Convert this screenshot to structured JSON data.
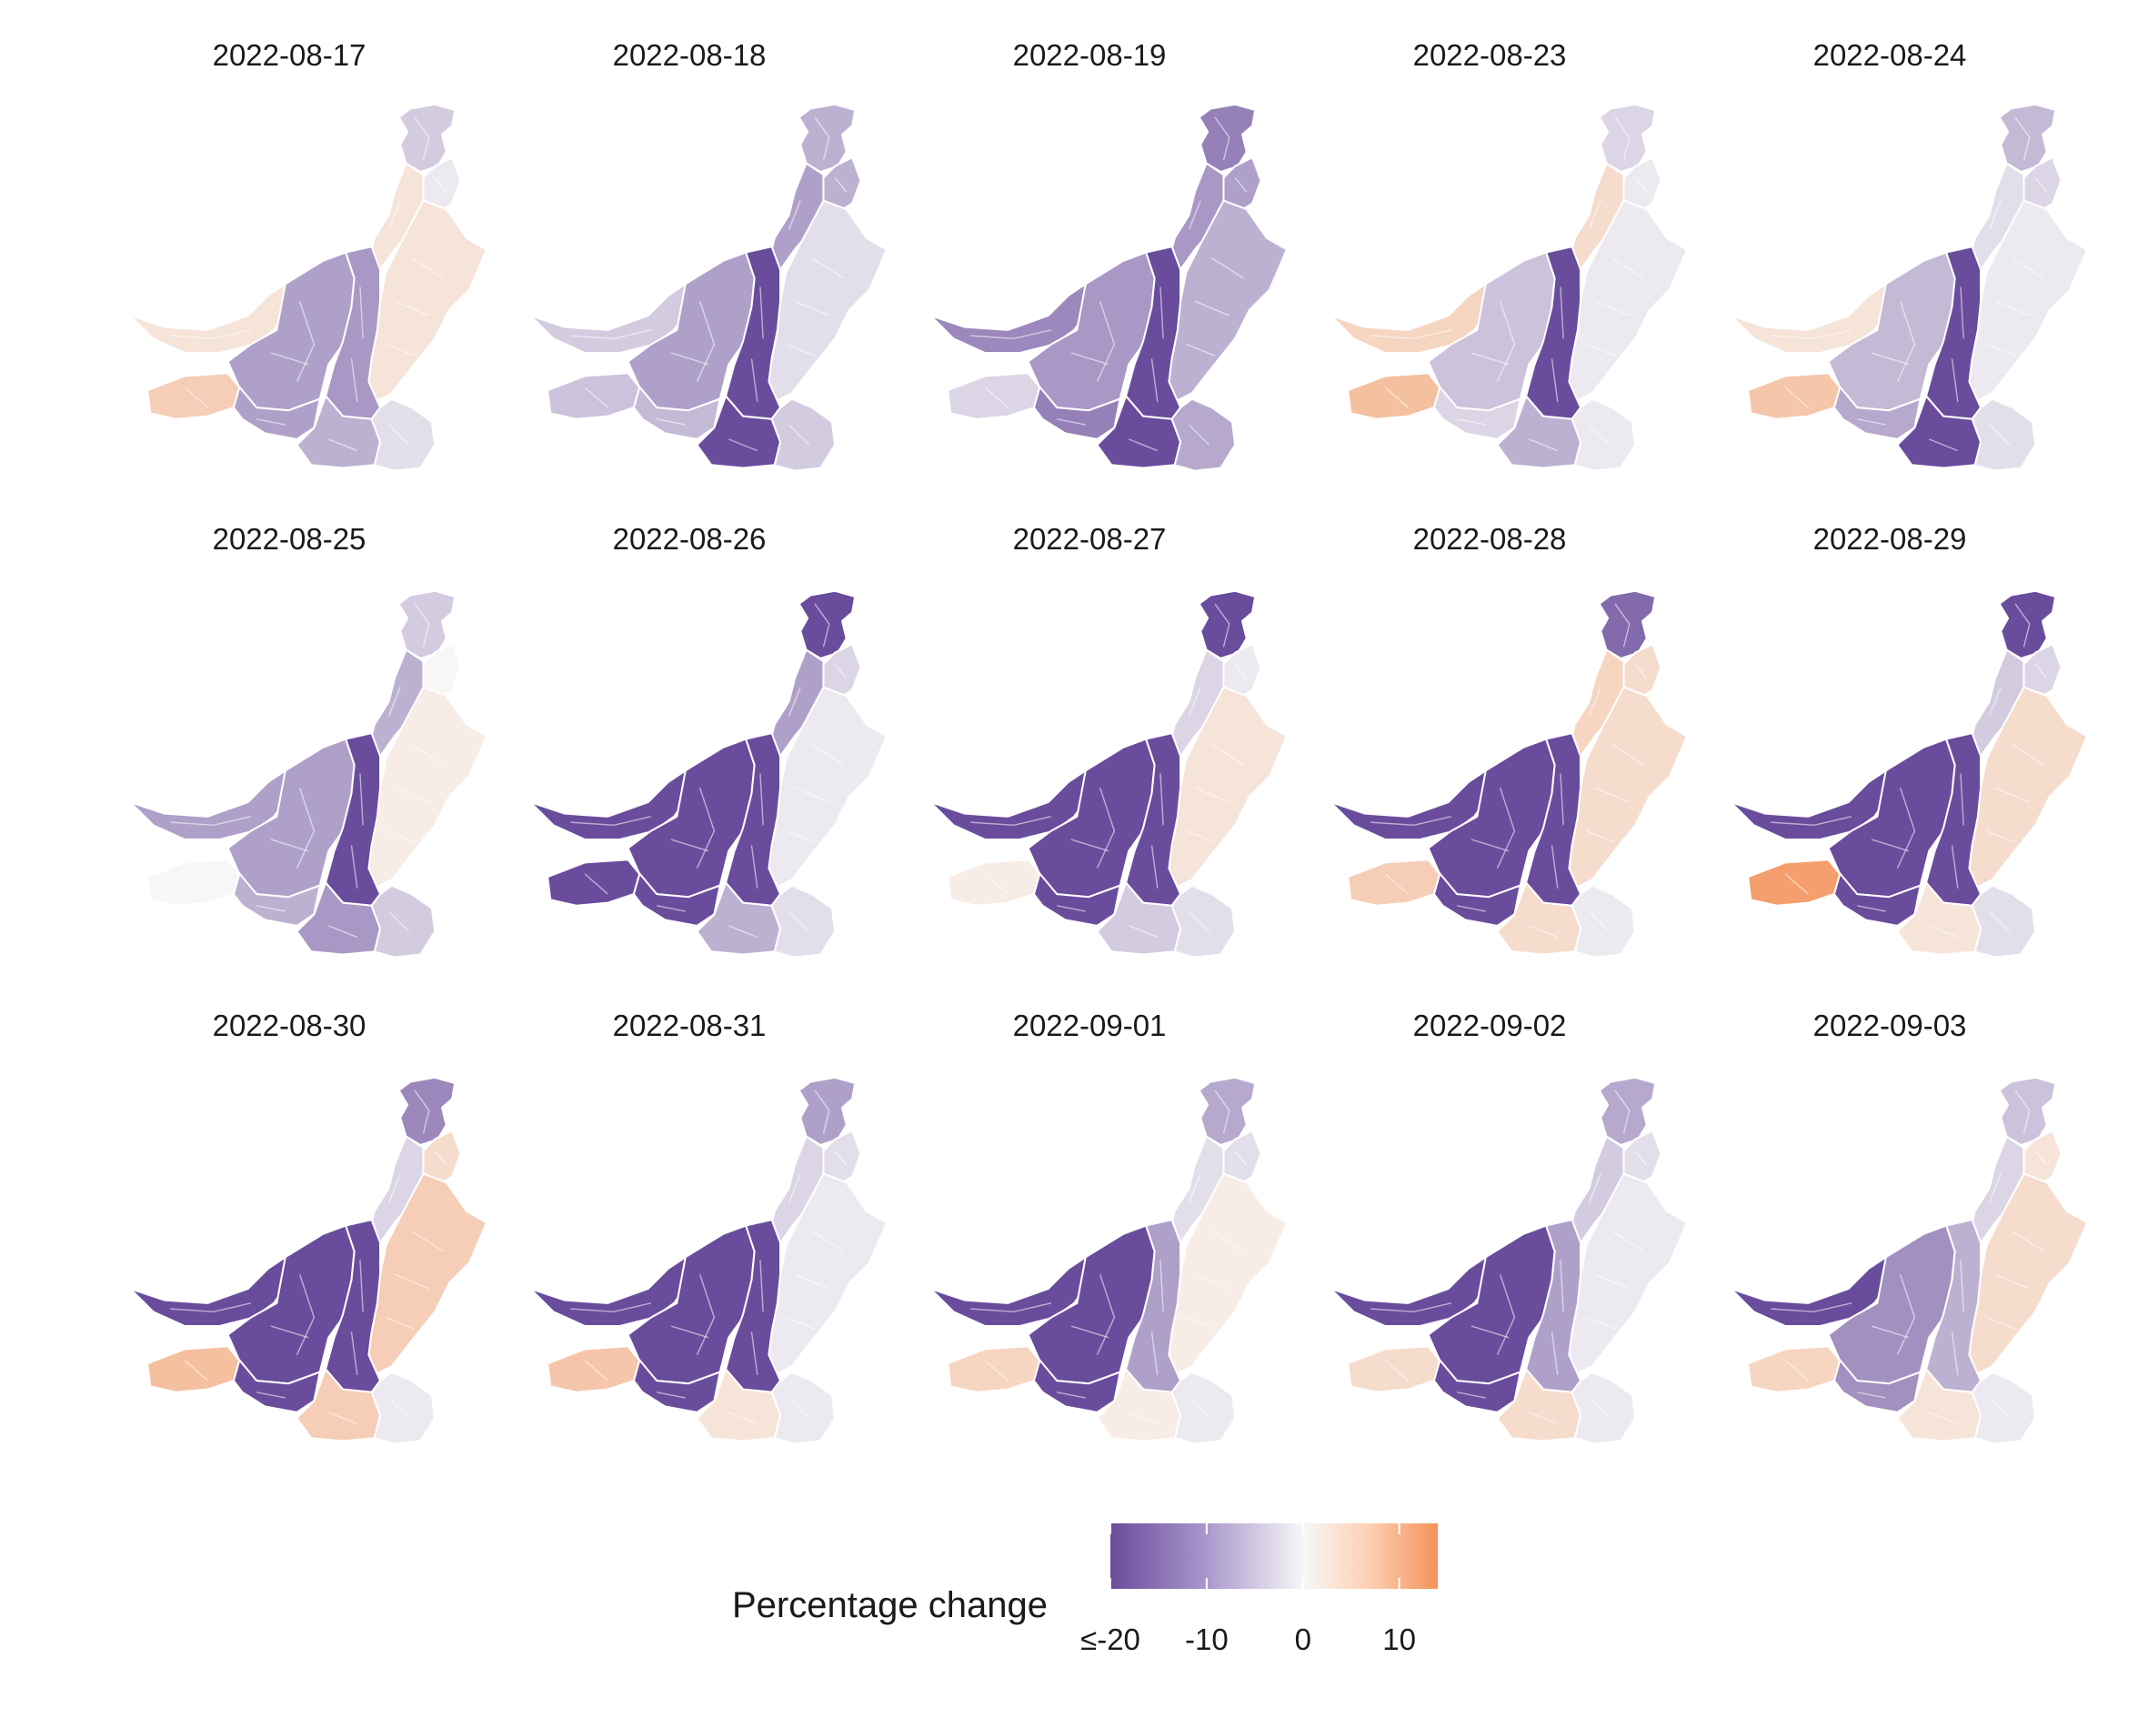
{
  "colors": {
    "min": "#6a4c9c",
    "mid": "#f7f7f7",
    "max": "#f4935a"
  },
  "scale": {
    "min": -20,
    "max": 14,
    "mid": 0
  },
  "legend": {
    "title": "Percentage change",
    "tick_labels": [
      "≤-20",
      "-10",
      "0",
      "10"
    ],
    "tick_values": [
      -20,
      -10,
      0,
      10
    ]
  },
  "map_panels": [
    {
      "date": "2022-08-17",
      "values": {
        "NN": -4,
        "NE": -1,
        "KP": 2,
        "PJ": 2,
        "WB": 2,
        "CB": -9,
        "EB": -10,
        "SWB": 5,
        "SWS": -9,
        "SS": -7,
        "SE": -2
      }
    },
    {
      "date": "2022-08-18",
      "values": {
        "NN": -7,
        "NE": -7,
        "KP": -9,
        "PJ": -2,
        "WB": -4,
        "CB": -9,
        "EB": -20,
        "SWB": -5,
        "SWS": -6,
        "SS": -20,
        "SE": -4
      }
    },
    {
      "date": "2022-08-19",
      "values": {
        "NN": -13,
        "NE": -9,
        "KP": -10,
        "PJ": -7,
        "WB": -12,
        "CB": -10,
        "EB": -20,
        "SWB": -3,
        "SWS": -13,
        "SS": -20,
        "SE": -8
      }
    },
    {
      "date": "2022-08-23",
      "values": {
        "NN": -3,
        "NE": -1,
        "KP": 3,
        "PJ": -1,
        "WB": 4,
        "CB": -5,
        "EB": -20,
        "SWB": 7,
        "SWS": -3,
        "SS": -7,
        "SE": -1
      }
    },
    {
      "date": "2022-08-24",
      "values": {
        "NN": -6,
        "NE": -3,
        "KP": -2,
        "PJ": -1,
        "WB": 2,
        "CB": -6,
        "EB": -20,
        "SWB": 6,
        "SWS": -8,
        "SS": -20,
        "SE": -2
      }
    },
    {
      "date": "2022-08-25",
      "values": {
        "NN": -4,
        "NE": 0,
        "KP": -7,
        "PJ": 1,
        "WB": -9,
        "CB": -9,
        "EB": -20,
        "SWB": 0,
        "SWS": -7,
        "SS": -10,
        "SE": -4
      }
    },
    {
      "date": "2022-08-26",
      "values": {
        "NN": -20,
        "NE": -3,
        "KP": -9,
        "PJ": -1,
        "WB": -20,
        "CB": -20,
        "EB": -20,
        "SWB": -20,
        "SWS": -20,
        "SS": -7,
        "SE": -2
      }
    },
    {
      "date": "2022-08-27",
      "values": {
        "NN": -20,
        "NE": -1,
        "KP": -3,
        "PJ": 2,
        "WB": -20,
        "CB": -20,
        "EB": -20,
        "SWB": 1,
        "SWS": -20,
        "SS": -4,
        "SE": -2
      }
    },
    {
      "date": "2022-08-28",
      "values": {
        "NN": -16,
        "NE": 3,
        "KP": 4,
        "PJ": 3,
        "WB": -20,
        "CB": -20,
        "EB": -20,
        "SWB": 5,
        "SWS": -20,
        "SS": 3,
        "SE": -1
      }
    },
    {
      "date": "2022-08-29",
      "values": {
        "NN": -20,
        "NE": -3,
        "KP": -4,
        "PJ": 3,
        "WB": -20,
        "CB": -20,
        "EB": -20,
        "SWB": 12,
        "SWS": -20,
        "SS": 2,
        "SE": -2
      }
    },
    {
      "date": "2022-08-30",
      "values": {
        "NN": -12,
        "NE": 3,
        "KP": -3,
        "PJ": 5,
        "WB": -20,
        "CB": -20,
        "EB": -20,
        "SWB": 7,
        "SWS": -20,
        "SS": 5,
        "SE": -1
      }
    },
    {
      "date": "2022-08-31",
      "values": {
        "NN": -9,
        "NE": -2,
        "KP": -3,
        "PJ": -1,
        "WB": -20,
        "CB": -20,
        "EB": -20,
        "SWB": 6,
        "SWS": -20,
        "SS": 2,
        "SE": -1
      }
    },
    {
      "date": "2022-09-01",
      "values": {
        "NN": -8,
        "NE": -2,
        "KP": -2,
        "PJ": 1,
        "WB": -20,
        "CB": -20,
        "EB": -9,
        "SWB": 4,
        "SWS": -20,
        "SS": 1,
        "SE": -1
      }
    },
    {
      "date": "2022-09-02",
      "values": {
        "NN": -8,
        "NE": -2,
        "KP": -4,
        "PJ": -1,
        "WB": -20,
        "CB": -20,
        "EB": -9,
        "SWB": 3,
        "SWS": -20,
        "SS": 3,
        "SE": -1
      }
    },
    {
      "date": "2022-09-03",
      "values": {
        "NN": -5,
        "NE": 2,
        "KP": -3,
        "PJ": 3,
        "WB": -20,
        "CB": -11,
        "EB": -7,
        "SWB": 4,
        "SWS": -11,
        "SS": 2,
        "SE": -1
      }
    }
  ]
}
